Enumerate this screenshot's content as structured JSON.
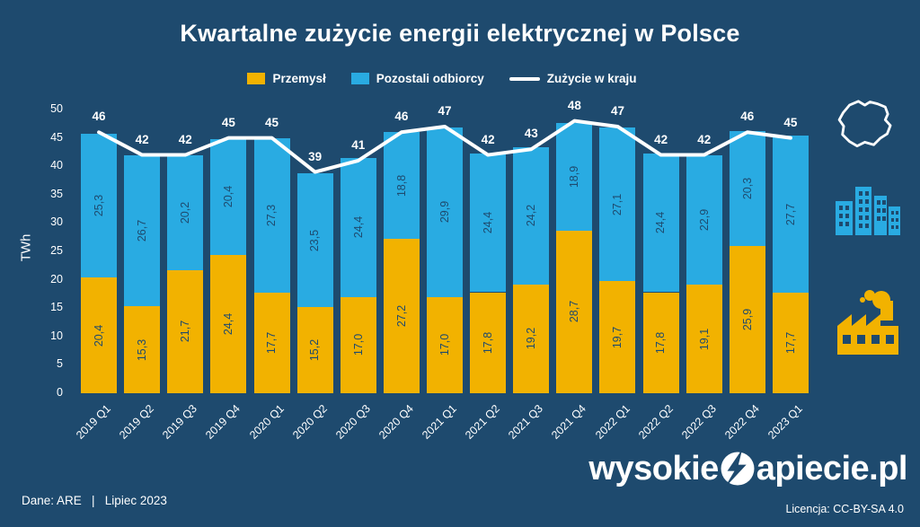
{
  "colors": {
    "background": "#1e4a6e",
    "industry": "#f2b200",
    "others": "#29abe2",
    "line": "#ffffff",
    "bar_label": "#1e4a6e"
  },
  "legend": [
    {
      "label": "Przemysł",
      "color": "#f2b200",
      "type": "square"
    },
    {
      "label": "Pozostali odbiorcy",
      "color": "#29abe2",
      "type": "square"
    },
    {
      "label": "Zużycie w kraju",
      "color": "#ffffff",
      "type": "line"
    }
  ],
  "chart_data": {
    "type": "bar",
    "stacked": true,
    "title": "Kwartalne zużycie energii elektrycznej w Polsce",
    "ylabel": "TWh",
    "ylim": [
      0,
      50
    ],
    "yticks": [
      0,
      5,
      10,
      15,
      20,
      25,
      30,
      35,
      40,
      45,
      50
    ],
    "categories": [
      "2019 Q1",
      "2019 Q2",
      "2019 Q3",
      "2019 Q4",
      "2020 Q1",
      "2020 Q2",
      "2020 Q3",
      "2020 Q4",
      "2021 Q1",
      "2021 Q2",
      "2021 Q3",
      "2021 Q4",
      "2022 Q1",
      "2022 Q2",
      "2022 Q3",
      "2022 Q4",
      "2023 Q1"
    ],
    "series": [
      {
        "name": "Przemysł",
        "color": "#f2b200",
        "values": [
          20.4,
          15.3,
          21.7,
          24.4,
          17.7,
          15.2,
          17.0,
          27.2,
          17.0,
          17.8,
          19.2,
          28.7,
          19.7,
          17.8,
          19.1,
          25.9,
          17.7
        ],
        "labels": [
          "20,4",
          "15,3",
          "21,7",
          "24,4",
          "17,7",
          "15,2",
          "17,0",
          "27,2",
          "17,0",
          "17,8",
          "19,2",
          "28,7",
          "19,7",
          "17,8",
          "19,1",
          "25,9",
          "17,7"
        ]
      },
      {
        "name": "Pozostali odbiorcy",
        "color": "#29abe2",
        "values": [
          25.3,
          26.7,
          20.2,
          20.4,
          27.3,
          23.5,
          24.4,
          18.8,
          29.9,
          24.4,
          24.2,
          18.9,
          27.1,
          24.4,
          22.9,
          20.3,
          27.7
        ],
        "labels": [
          "25,3",
          "26,7",
          "20,2",
          "20,4",
          "27,3",
          "23,5",
          "24,4",
          "18,8",
          "29,9",
          "24,4",
          "24,2",
          "18,9",
          "27,1",
          "24,4",
          "22,9",
          "20,3",
          "27,7"
        ]
      }
    ],
    "line_series": {
      "name": "Zużycie w kraju",
      "color": "#ffffff",
      "values": [
        46,
        42,
        42,
        45,
        45,
        39,
        41,
        46,
        47,
        42,
        43,
        48,
        47,
        42,
        42,
        46,
        45
      ],
      "labels": [
        "46",
        "42",
        "42",
        "45",
        "45",
        "39",
        "41",
        "46",
        "47",
        "42",
        "43",
        "48",
        "47",
        "42",
        "42",
        "46",
        "45"
      ]
    },
    "legend_position": "top",
    "grid": false
  },
  "icons": [
    "poland-map-icon",
    "city-buildings-icon",
    "factory-icon",
    "lightning-bolt-icon"
  ],
  "footer": {
    "source": "Dane: ARE   |   Lipiec 2023",
    "license": "Licencja: CC-BY-SA 4.0"
  },
  "logo": {
    "prefix": "wysokie",
    "suffix": "apiecie.pl"
  }
}
